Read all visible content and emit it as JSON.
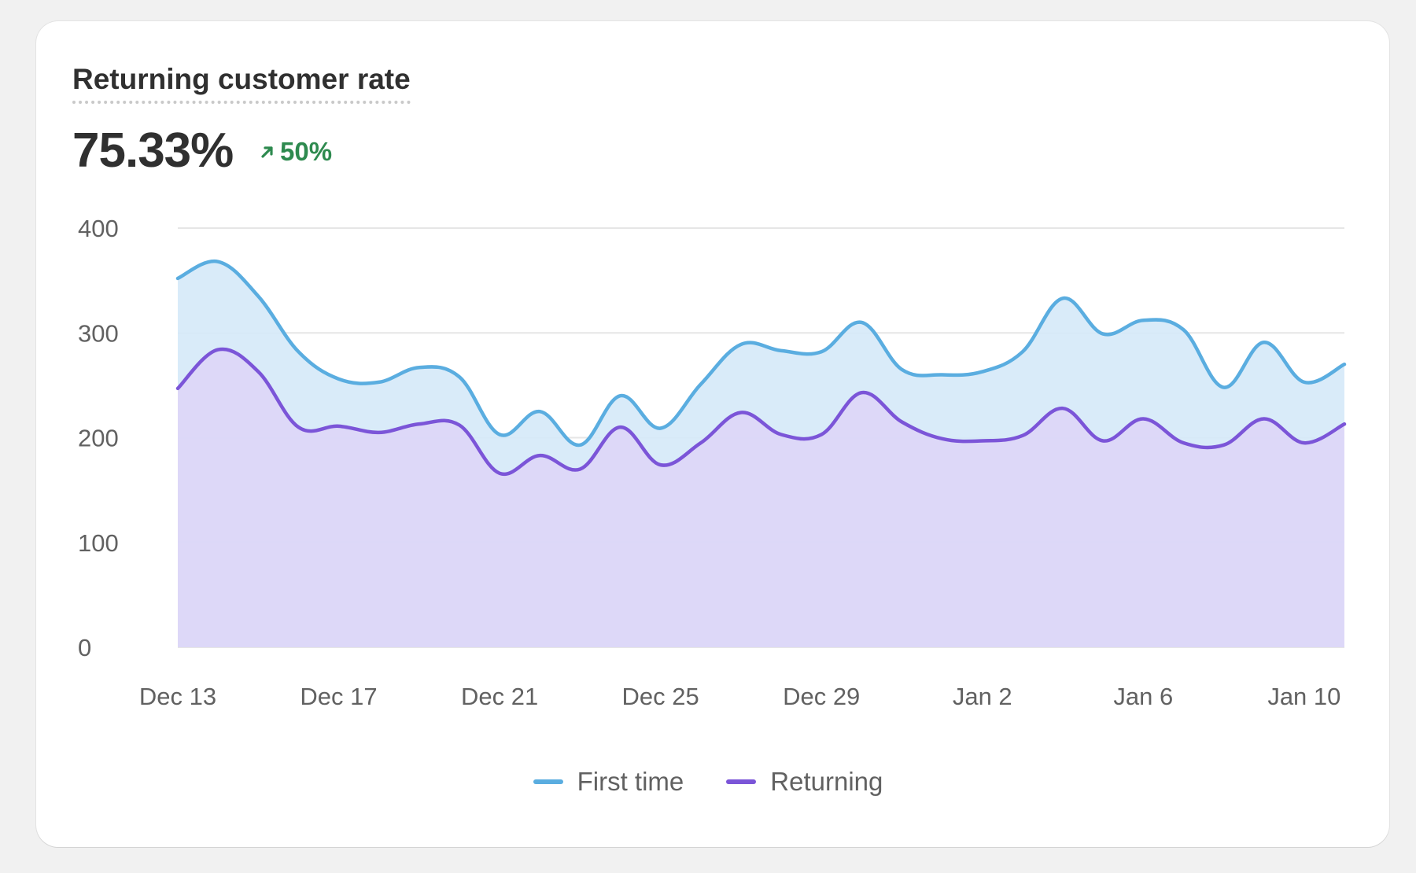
{
  "card": {
    "title": "Returning customer rate",
    "value": "75.33%",
    "delta": "50%",
    "delta_direction": "up",
    "delta_color": "#2e8a4f"
  },
  "chart_data": {
    "type": "area",
    "title": "Returning customer rate",
    "xlabel": "",
    "ylabel": "",
    "ylim": [
      0,
      400
    ],
    "y_ticks": [
      "0",
      "100",
      "200",
      "300",
      "400"
    ],
    "x_tick_labels": [
      "Dec 13",
      "Dec 17",
      "Dec 21",
      "Dec 25",
      "Dec 29",
      "Jan 2",
      "Jan 6",
      "Jan 10"
    ],
    "x": [
      "Dec 13",
      "Dec 14",
      "Dec 15",
      "Dec 16",
      "Dec 17",
      "Dec 18",
      "Dec 19",
      "Dec 20",
      "Dec 21",
      "Dec 22",
      "Dec 23",
      "Dec 24",
      "Dec 25",
      "Dec 26",
      "Dec 27",
      "Dec 28",
      "Dec 29",
      "Dec 30",
      "Dec 31",
      "Jan 1",
      "Jan 2",
      "Jan 3",
      "Jan 4",
      "Jan 5",
      "Jan 6",
      "Jan 7",
      "Jan 8",
      "Jan 9",
      "Jan 10",
      "Jan 11"
    ],
    "grid": true,
    "legend_position": "bottom",
    "series": [
      {
        "name": "First time",
        "color": "#5aade0",
        "fill": "#d5e9f8",
        "values": [
          352,
          368,
          335,
          282,
          256,
          253,
          267,
          258,
          203,
          225,
          193,
          240,
          209,
          251,
          289,
          283,
          282,
          310,
          265,
          260,
          263,
          282,
          333,
          299,
          312,
          303,
          248,
          291,
          253,
          270
        ]
      },
      {
        "name": "Returning",
        "color": "#7b55d8",
        "fill": "#ddd6f7",
        "values": [
          247,
          284,
          263,
          210,
          211,
          205,
          213,
          212,
          166,
          183,
          170,
          210,
          174,
          195,
          224,
          203,
          203,
          243,
          215,
          199,
          197,
          202,
          228,
          197,
          218,
          195,
          193,
          218,
          195,
          213
        ]
      }
    ]
  }
}
